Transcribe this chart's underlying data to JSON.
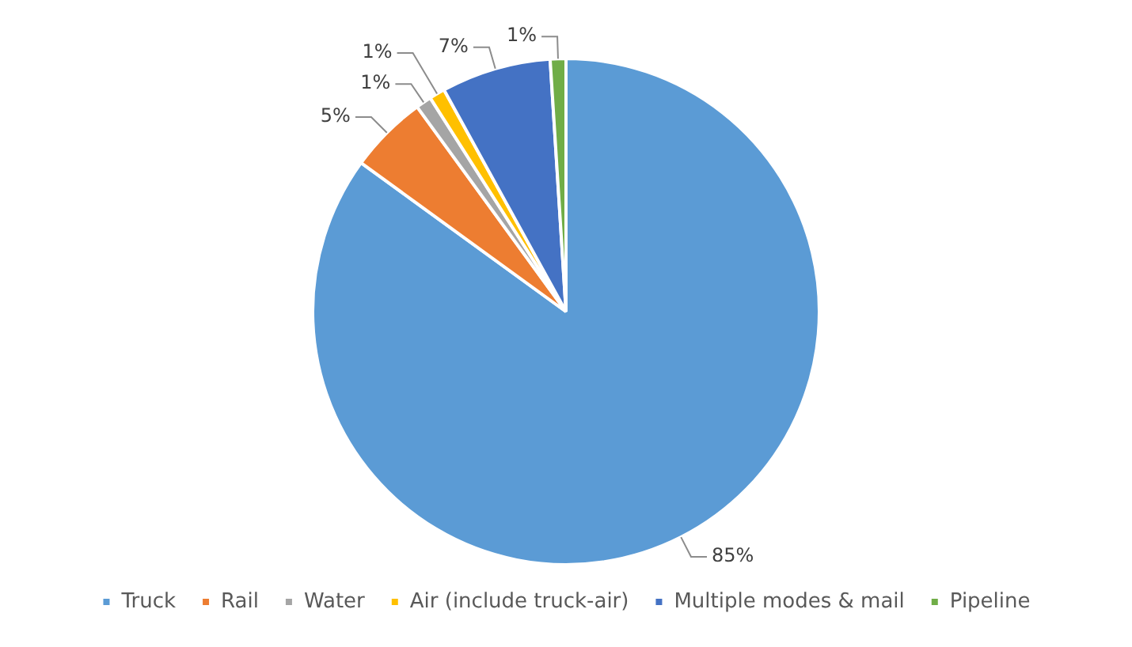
{
  "chart_data": {
    "type": "pie",
    "categories": [
      "Truck",
      "Rail",
      "Water",
      "Air (include truck-air)",
      "Multiple modes & mail",
      "Pipeline"
    ],
    "values": [
      85,
      5,
      1,
      1,
      7,
      1
    ],
    "colors": [
      "#5b9bd5",
      "#ed7d31",
      "#a5a5a5",
      "#ffc000",
      "#4472c4",
      "#70ad47"
    ],
    "value_labels": [
      "85%",
      "5%",
      "1%",
      "1%",
      "7%",
      "1%"
    ],
    "legend": "bottom"
  }
}
